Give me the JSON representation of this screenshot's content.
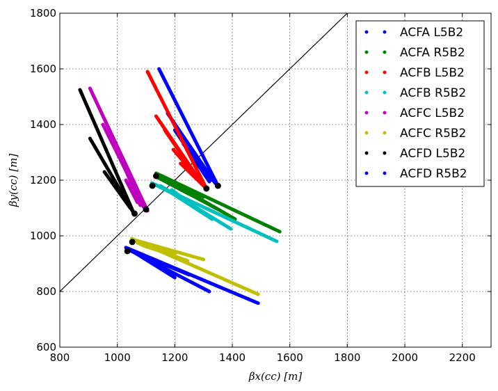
{
  "chart_data": {
    "type": "scatter",
    "xlabel": "βx(cc) [m]",
    "ylabel": "βy(cc) [m]",
    "xlim": [
      800,
      2300
    ],
    "ylim": [
      600,
      1800
    ],
    "xticks": [
      800,
      1000,
      1200,
      1400,
      1600,
      1800,
      2000,
      2200
    ],
    "yticks": [
      600,
      800,
      1000,
      1200,
      1400,
      1600,
      1800
    ],
    "grid": true,
    "legend_position": "top-right",
    "reference_line": {
      "from": [
        800,
        800
      ],
      "to": [
        1800,
        1800
      ],
      "color": "#000000"
    },
    "series": [
      {
        "name": "ACFA L5B2",
        "color": "#0000ff",
        "segments": [
          [
            [
              1145,
              1600
            ],
            [
              1350,
              1180
            ]
          ],
          [
            [
              1175,
              1440
            ],
            [
              1340,
              1190
            ]
          ],
          [
            [
              1200,
              1380
            ],
            [
              1320,
              1195
            ]
          ],
          [
            [
              1230,
              1330
            ],
            [
              1345,
              1185
            ]
          ],
          [
            [
              1260,
              1300
            ],
            [
              1330,
              1200
            ]
          ]
        ],
        "marker": [
          1350,
          1180
        ]
      },
      {
        "name": "ACFA R5B2",
        "color": "#008000",
        "segments": [
          [
            [
              1135,
              1225
            ],
            [
              1565,
              1015
            ]
          ],
          [
            [
              1150,
              1215
            ],
            [
              1410,
              1060
            ]
          ],
          [
            [
              1160,
              1205
            ],
            [
              1300,
              1140
            ]
          ],
          [
            [
              1170,
              1195
            ],
            [
              1360,
              1090
            ]
          ],
          [
            [
              1140,
              1210
            ],
            [
              1250,
              1150
            ]
          ]
        ],
        "marker": [
          1135,
          1215
        ]
      },
      {
        "name": "ACFB L5B2",
        "color": "#ff0000",
        "segments": [
          [
            [
              1105,
              1590
            ],
            [
              1310,
              1170
            ]
          ],
          [
            [
              1135,
              1430
            ],
            [
              1300,
              1180
            ]
          ],
          [
            [
              1165,
              1380
            ],
            [
              1295,
              1185
            ]
          ],
          [
            [
              1195,
              1310
            ],
            [
              1305,
              1175
            ]
          ],
          [
            [
              1220,
              1260
            ],
            [
              1300,
              1180
            ]
          ]
        ],
        "marker": [
          1310,
          1170
        ]
      },
      {
        "name": "ACFB R5B2",
        "color": "#00bfbf",
        "segments": [
          [
            [
              1120,
              1190
            ],
            [
              1555,
              980
            ]
          ],
          [
            [
              1150,
              1180
            ],
            [
              1395,
              1025
            ]
          ],
          [
            [
              1165,
              1170
            ],
            [
              1330,
              1060
            ]
          ],
          [
            [
              1190,
              1165
            ],
            [
              1280,
              1095
            ]
          ],
          [
            [
              1130,
              1185
            ],
            [
              1215,
              1140
            ]
          ]
        ],
        "marker": [
          1122,
          1180
        ]
      },
      {
        "name": "ACFC L5B2",
        "color": "#bf00bf",
        "segments": [
          [
            [
              905,
              1530
            ],
            [
              1105,
              1090
            ]
          ],
          [
            [
              950,
              1400
            ],
            [
              1095,
              1100
            ]
          ],
          [
            [
              985,
              1330
            ],
            [
              1090,
              1105
            ]
          ],
          [
            [
              1020,
              1260
            ],
            [
              1080,
              1110
            ]
          ],
          [
            [
              1030,
              1200
            ],
            [
              1070,
              1120
            ]
          ]
        ],
        "marker": [
          1100,
          1095
        ]
      },
      {
        "name": "ACFC R5B2",
        "color": "#bfbf00",
        "segments": [
          [
            [
              1050,
              990
            ],
            [
              1490,
              790
            ]
          ],
          [
            [
              1060,
              985
            ],
            [
              1300,
              915
            ]
          ],
          [
            [
              1070,
              975
            ],
            [
              1245,
              910
            ]
          ],
          [
            [
              1080,
              970
            ],
            [
              1200,
              935
            ]
          ],
          [
            [
              1090,
              965
            ],
            [
              1150,
              945
            ]
          ]
        ],
        "marker": [
          1052,
          978
        ]
      },
      {
        "name": "ACFD L5B2",
        "color": "#000000",
        "segments": [
          [
            [
              870,
              1525
            ],
            [
              1060,
              1075
            ]
          ],
          [
            [
              905,
              1350
            ],
            [
              1055,
              1085
            ]
          ],
          [
            [
              955,
              1230
            ],
            [
              1045,
              1100
            ]
          ],
          [
            [
              985,
              1200
            ],
            [
              1040,
              1110
            ]
          ],
          [
            [
              1000,
              1170
            ],
            [
              1030,
              1130
            ]
          ]
        ],
        "marker": [
          1060,
          1080
        ]
      },
      {
        "name": "ACFD R5B2",
        "color": "#0000ff",
        "segments": [
          [
            [
              1030,
              958
            ],
            [
              1490,
              758
            ]
          ],
          [
            [
              1040,
              950
            ],
            [
              1320,
              800
            ]
          ],
          [
            [
              1050,
              945
            ],
            [
              1250,
              860
            ]
          ],
          [
            [
              1060,
              940
            ],
            [
              1200,
              850
            ]
          ],
          [
            [
              1070,
              935
            ],
            [
              1150,
              895
            ]
          ]
        ],
        "marker": [
          1035,
          945
        ]
      }
    ]
  }
}
